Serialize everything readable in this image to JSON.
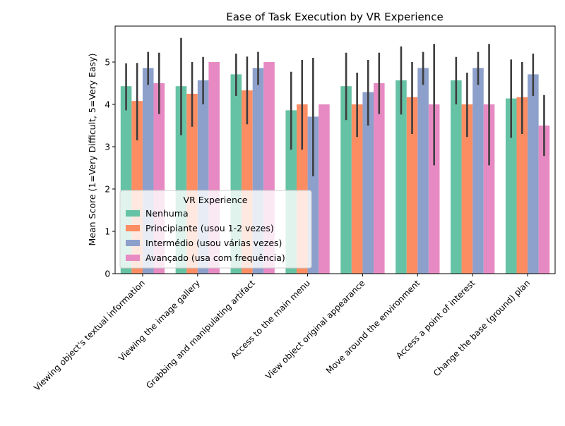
{
  "chart_data": {
    "type": "bar",
    "title": "Ease of Task Execution by VR Experience",
    "xlabel": "",
    "ylabel": "Mean Score (1=Very Difficult, 5=Very Easy)",
    "ylim": [
      0,
      5.85
    ],
    "yticks": [
      0,
      1,
      2,
      3,
      4,
      5
    ],
    "ytick_labels": [
      "0",
      "1",
      "2",
      "3",
      "4",
      "5"
    ],
    "grid": false,
    "legend": {
      "title": "VR Experience",
      "placement": "lower-left"
    },
    "categories": [
      "Viewing object's textual information",
      "Viewing the image gallery",
      "Grabbing and manipulating artifact",
      "Access to the main menu",
      "View object original appearance",
      "Move around the environment",
      "Access a point of interest",
      "Change the base (ground) plan"
    ],
    "series": [
      {
        "name": "Nenhuma",
        "color": "#66c2a5",
        "values": [
          4.43,
          4.43,
          4.71,
          3.86,
          4.43,
          4.57,
          4.57,
          4.14
        ],
        "ci_low": [
          3.86,
          3.27,
          4.2,
          2.93,
          3.63,
          3.76,
          4.0,
          3.21
        ],
        "ci_high": [
          4.97,
          5.57,
          5.2,
          4.77,
          5.22,
          5.37,
          5.12,
          5.06
        ]
      },
      {
        "name": "Principiante (usou 1-2 vezes)",
        "color": "#fc8d62",
        "values": [
          4.08,
          4.25,
          4.33,
          4.0,
          4.0,
          4.17,
          4.0,
          4.17
        ],
        "ci_low": [
          3.15,
          3.47,
          3.53,
          2.93,
          3.23,
          3.3,
          3.23,
          3.3
        ],
        "ci_high": [
          4.98,
          5.0,
          5.13,
          5.05,
          4.75,
          5.0,
          4.75,
          5.0
        ]
      },
      {
        "name": "Intermédio (usou várias vezes)",
        "color": "#8da0cb",
        "values": [
          4.86,
          4.57,
          4.86,
          3.71,
          4.29,
          4.86,
          4.86,
          4.71
        ],
        "ci_low": [
          4.46,
          4.0,
          4.46,
          2.3,
          3.5,
          4.46,
          4.46,
          4.2
        ],
        "ci_high": [
          5.24,
          5.12,
          5.24,
          5.1,
          5.05,
          5.24,
          5.24,
          5.2
        ]
      },
      {
        "name": "Avançado (usa com frequência)",
        "color": "#e78ac3",
        "values": [
          4.5,
          5.0,
          5.0,
          4.0,
          4.5,
          4.0,
          4.0,
          3.5
        ],
        "ci_low": [
          3.77,
          5.0,
          5.0,
          4.0,
          3.77,
          2.56,
          2.56,
          2.78
        ],
        "ci_high": [
          5.22,
          5.0,
          5.0,
          4.0,
          5.22,
          5.43,
          5.43,
          4.22
        ]
      }
    ]
  }
}
